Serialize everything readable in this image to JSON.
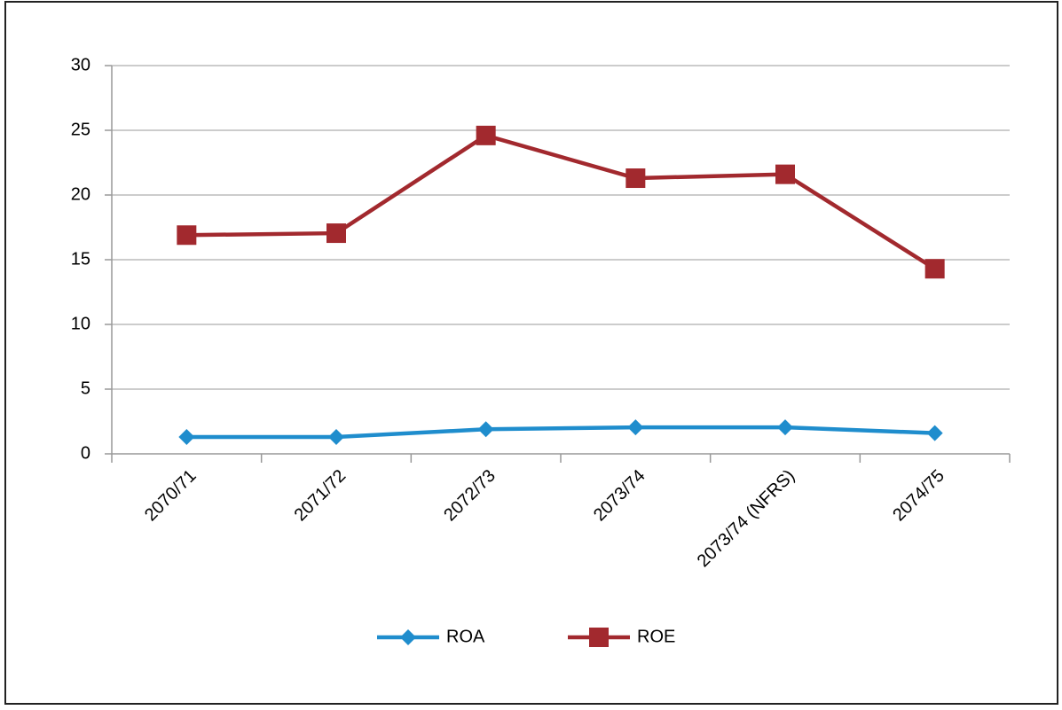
{
  "chart_data": {
    "type": "line",
    "categories": [
      "2070/71",
      "2071/72",
      "2072/73",
      "2073/74",
      "2073/74 (NFRS)",
      "2074/75"
    ],
    "series": [
      {
        "name": "ROA",
        "color": "#1f8dcd",
        "marker": "diamond",
        "values": [
          1.3,
          1.3,
          1.9,
          2.05,
          2.05,
          1.6
        ]
      },
      {
        "name": "ROE",
        "color": "#a2292e",
        "marker": "square",
        "values": [
          16.9,
          17.05,
          24.6,
          21.3,
          21.6,
          14.3
        ]
      }
    ],
    "ylim": [
      0,
      30
    ],
    "yticks": [
      0,
      5,
      10,
      15,
      20,
      25,
      30
    ],
    "grid": true,
    "legend": "bottom"
  }
}
